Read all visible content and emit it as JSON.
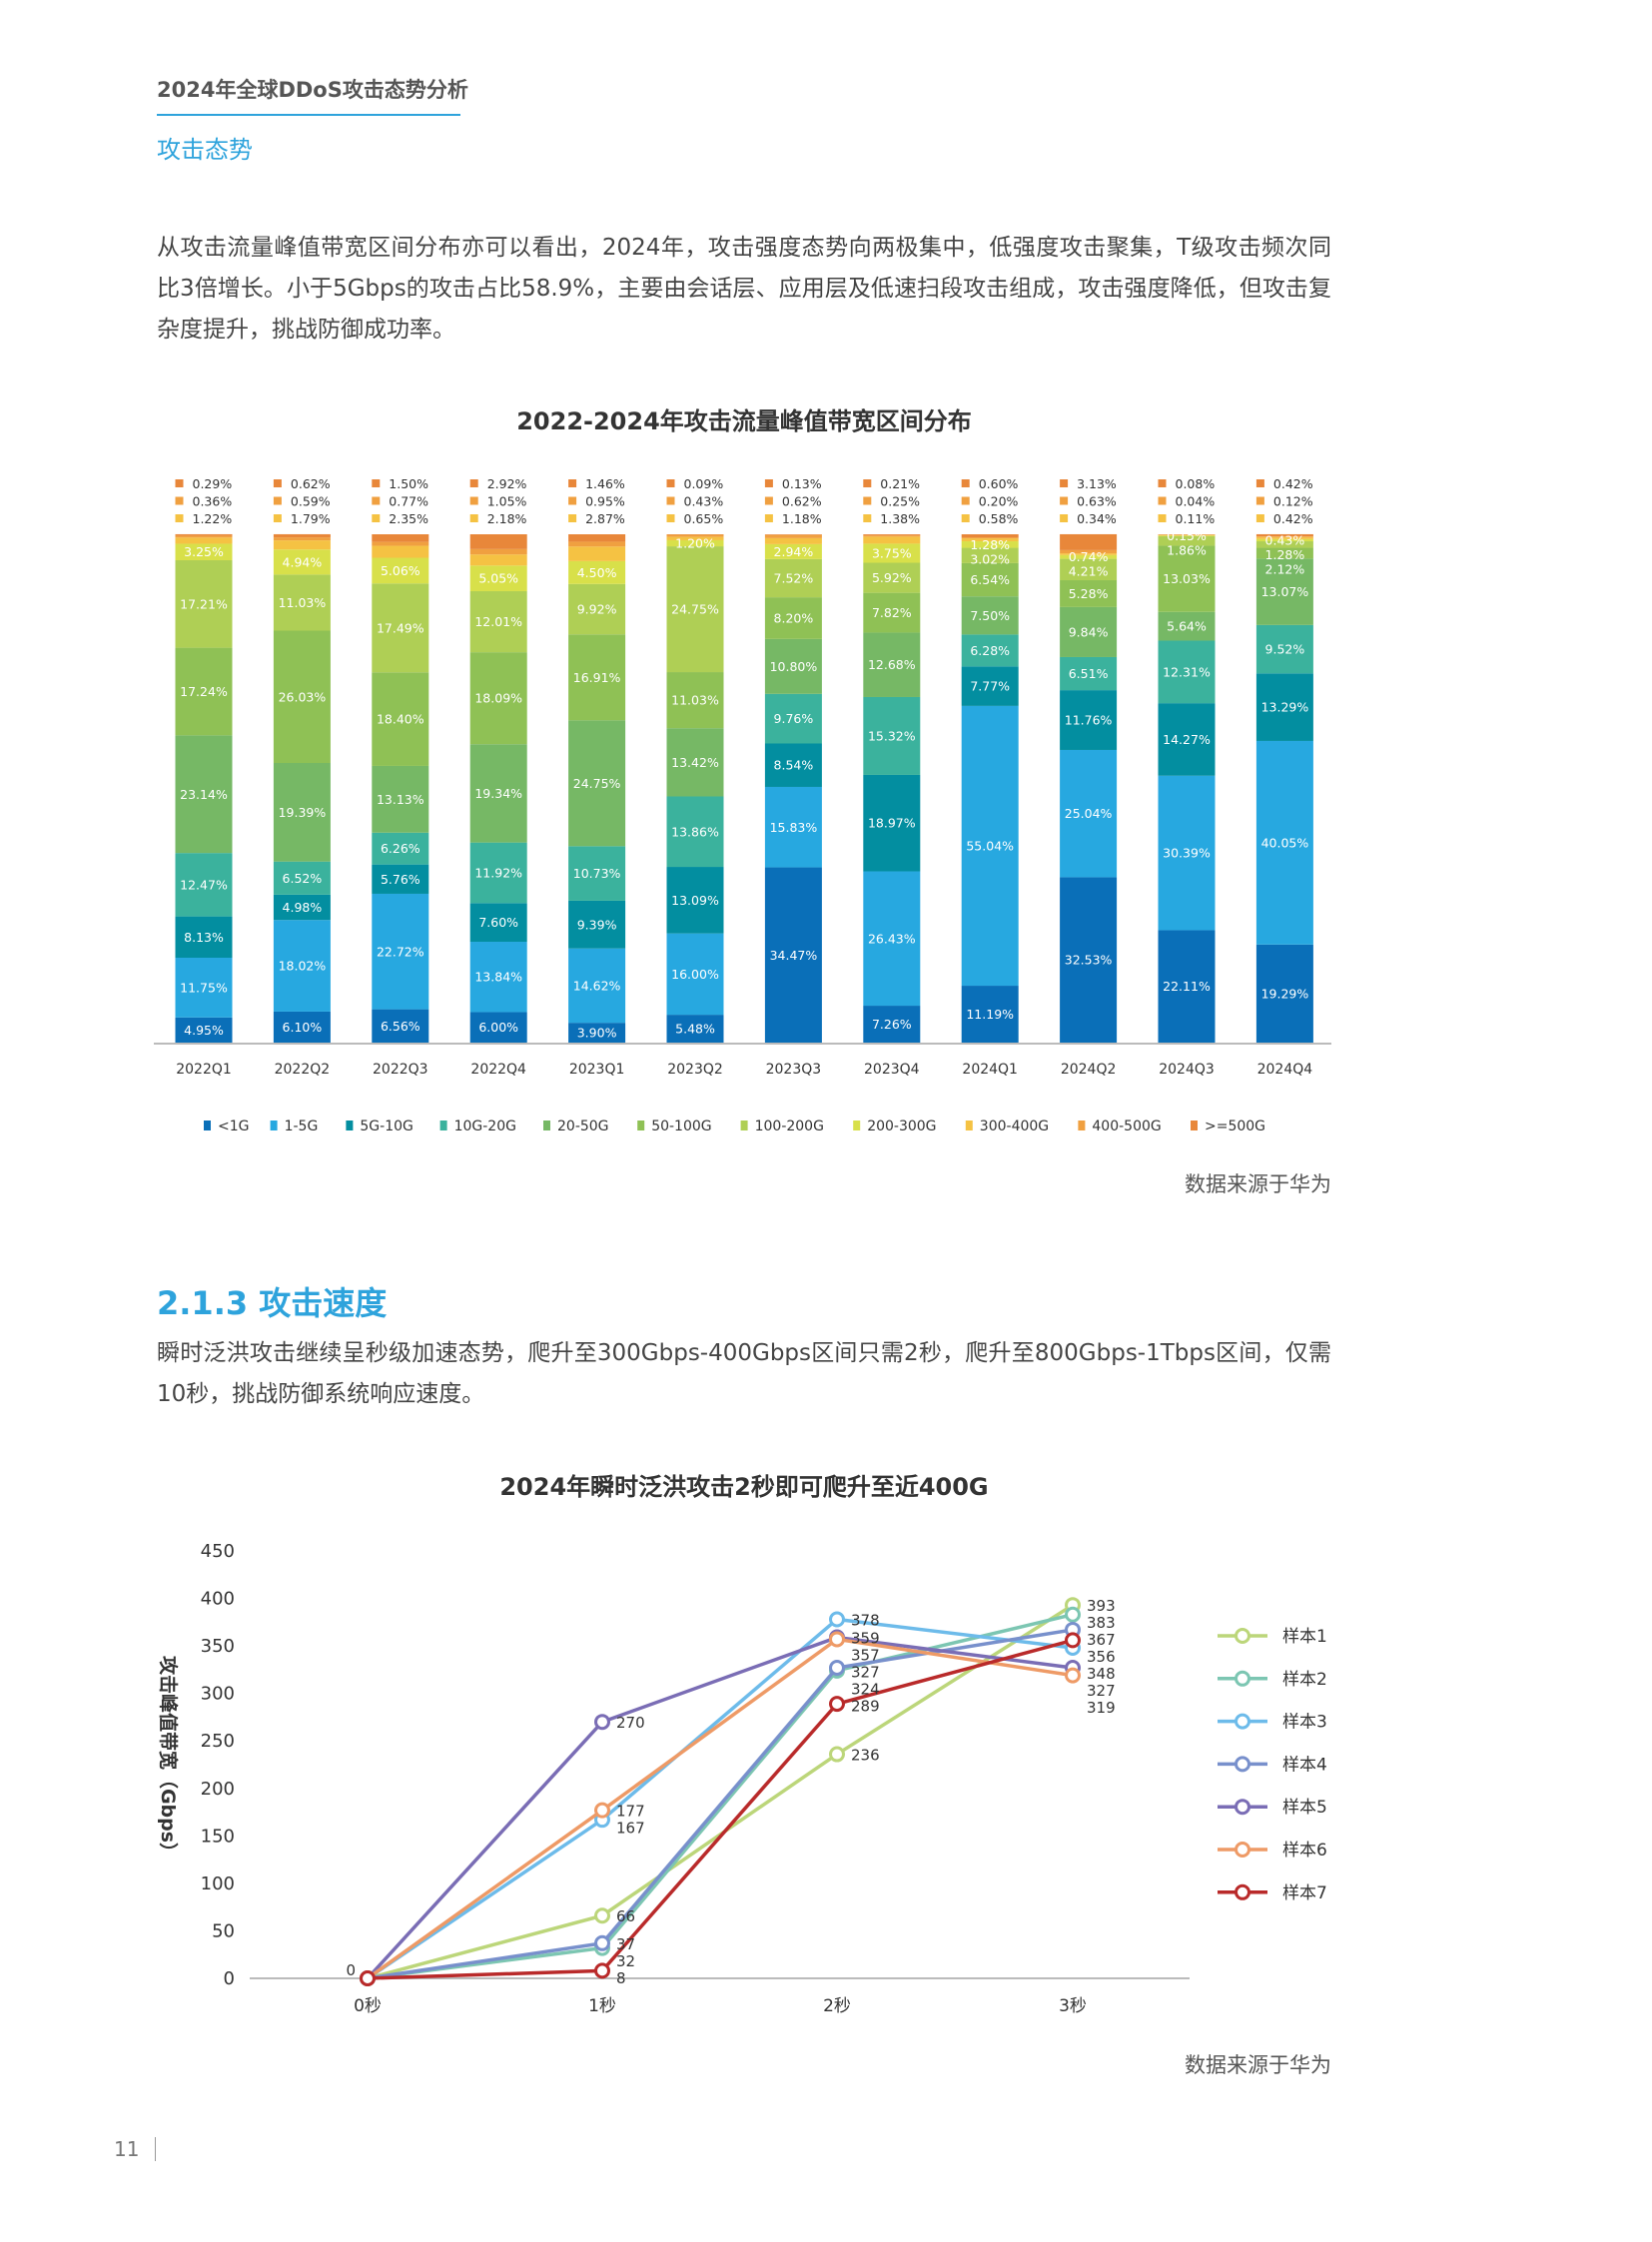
{
  "header": {
    "doc_title": "2024年全球DDoS攻击态势分析",
    "section_label": "攻击态势"
  },
  "paragraph1": "从攻击流量峰值带宽区间分布亦可以看出，2024年，攻击强度态势向两极集中，低强度攻击聚集，T级攻击频次同比3倍增长。小于5Gbps的攻击占比58.9%，主要由会话层、应用层及低速扫段攻击组成，攻击强度降低，但攻击复杂度提升，挑战防御成功率。",
  "source1": "数据来源于华为",
  "section_heading": "2.1.3 攻击速度",
  "paragraph2": "瞬时泛洪攻击继续呈秒级加速态势，爬升至300Gbps-400Gbps区间只需2秒，爬升至800Gbps-1Tbps区间，仅需10秒，挑战防御系统响应速度。",
  "source2": "数据来源于华为",
  "page_number": "11",
  "chart_data": [
    {
      "type": "bar",
      "stacked": true,
      "title": "2022-2024年攻击流量峰值带宽区间分布",
      "unit": "%",
      "ylim": [
        0,
        100
      ],
      "legend_position": "bottom",
      "categories": [
        "2022Q1",
        "2022Q2",
        "2022Q3",
        "2022Q4",
        "2023Q1",
        "2023Q2",
        "2023Q3",
        "2023Q4",
        "2024Q1",
        "2024Q2",
        "2024Q3",
        "2024Q4"
      ],
      "series": [
        {
          "name": "<1G",
          "color": "#0a6fb8",
          "values": [
            4.95,
            6.1,
            6.56,
            6.0,
            3.9,
            5.48,
            34.47,
            7.26,
            11.19,
            32.53,
            22.11,
            19.29
          ]
        },
        {
          "name": "1-5G",
          "color": "#27a8e0",
          "values": [
            11.75,
            18.02,
            22.72,
            13.84,
            14.62,
            16.0,
            15.83,
            26.43,
            55.04,
            25.04,
            30.39,
            40.05
          ]
        },
        {
          "name": "5G-10G",
          "color": "#038ea0",
          "values": [
            8.13,
            4.98,
            5.76,
            7.6,
            9.39,
            13.09,
            8.54,
            18.97,
            7.77,
            11.76,
            14.27,
            13.29
          ]
        },
        {
          "name": "10G-20G",
          "color": "#3bb29d",
          "values": [
            12.47,
            6.52,
            6.26,
            11.92,
            10.73,
            13.86,
            9.76,
            15.32,
            6.28,
            6.51,
            12.31,
            9.52
          ]
        },
        {
          "name": "20-50G",
          "color": "#76b865",
          "values": [
            23.14,
            19.39,
            13.13,
            19.34,
            24.75,
            13.42,
            10.8,
            12.68,
            7.5,
            9.84,
            5.64,
            13.07
          ]
        },
        {
          "name": "50-100G",
          "color": "#8fc155",
          "values": [
            17.24,
            26.03,
            18.4,
            18.09,
            16.91,
            11.03,
            8.2,
            7.82,
            6.54,
            5.28,
            13.03,
            2.12
          ]
        },
        {
          "name": "100-200G",
          "color": "#afcf55",
          "values": [
            17.21,
            11.03,
            17.49,
            12.01,
            9.92,
            24.75,
            7.52,
            5.92,
            3.02,
            4.21,
            1.86,
            1.28
          ]
        },
        {
          "name": "200-300G",
          "color": "#d8e04a",
          "values": [
            3.25,
            4.94,
            5.06,
            5.05,
            4.5,
            1.2,
            2.94,
            3.75,
            1.28,
            0.74,
            0.15,
            0.43
          ]
        },
        {
          "name": "300-400G",
          "color": "#f5c243",
          "values": [
            1.22,
            1.79,
            2.35,
            2.18,
            2.87,
            0.65,
            1.18,
            1.38,
            0.58,
            0.34,
            0.11,
            0.42
          ]
        },
        {
          "name": "400-500G",
          "color": "#f0a040",
          "values": [
            0.36,
            0.59,
            0.77,
            1.05,
            0.95,
            0.43,
            0.62,
            0.25,
            0.2,
            0.63,
            0.04,
            0.12
          ]
        },
        {
          "name": ">=500G",
          "color": "#e8873a",
          "values": [
            0.29,
            0.62,
            1.5,
            2.92,
            1.46,
            0.09,
            0.13,
            0.21,
            0.6,
            3.13,
            0.08,
            0.42
          ]
        }
      ]
    },
    {
      "type": "line",
      "title": "2024年瞬时泛洪攻击2秒即可爬升至近400G",
      "ylabel": "攻击峰值带宽（Gbps）",
      "xlabel": "",
      "categories": [
        "0秒",
        "1秒",
        "2秒",
        "3秒"
      ],
      "ylim": [
        0,
        450
      ],
      "yticks": [
        0,
        50,
        100,
        150,
        200,
        250,
        300,
        350,
        400,
        450
      ],
      "legend_position": "right",
      "series": [
        {
          "name": "样本1",
          "color": "#bcd67a",
          "values": [
            0,
            66,
            236,
            393
          ]
        },
        {
          "name": "样本2",
          "color": "#7cc6b2",
          "values": [
            0,
            32,
            324,
            383
          ]
        },
        {
          "name": "样本3",
          "color": "#6dbbea",
          "values": [
            0,
            167,
            378,
            348
          ]
        },
        {
          "name": "样本4",
          "color": "#7890cc",
          "values": [
            0,
            37,
            327,
            367
          ]
        },
        {
          "name": "样本5",
          "color": "#7a6db5",
          "values": [
            0,
            270,
            359,
            327
          ]
        },
        {
          "name": "样本6",
          "color": "#ee9a66",
          "values": [
            0,
            177,
            357,
            319
          ]
        },
        {
          "name": "样本7",
          "color": "#b92a2a",
          "values": [
            0,
            8,
            289,
            356
          ]
        }
      ]
    }
  ]
}
